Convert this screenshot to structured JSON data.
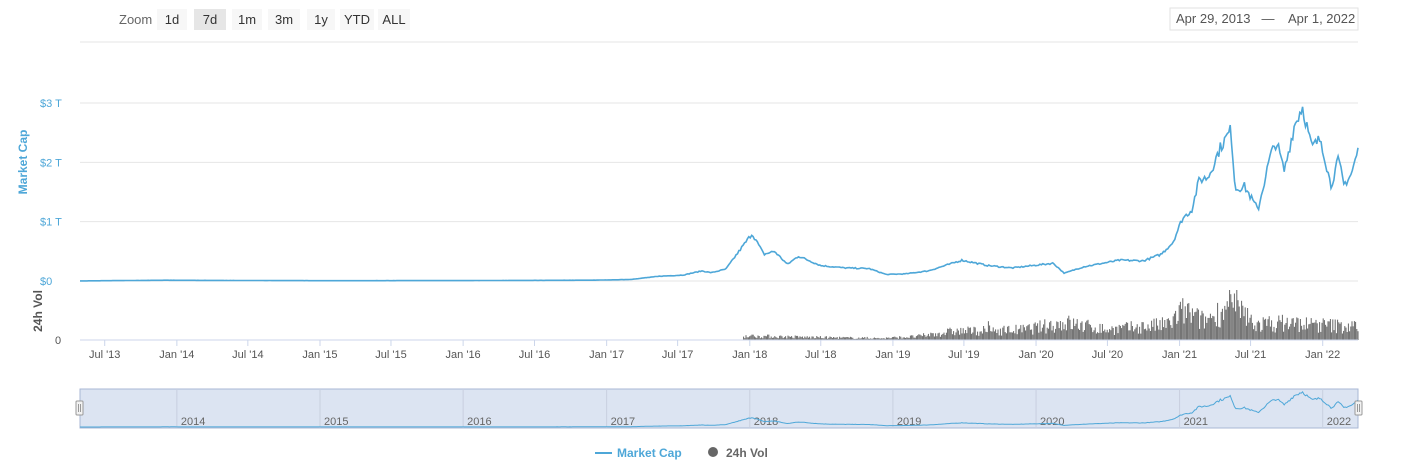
{
  "toolbar": {
    "zoom_label": "Zoom",
    "buttons": [
      {
        "label": "1d",
        "selected": false
      },
      {
        "label": "7d",
        "selected": true
      },
      {
        "label": "1m",
        "selected": false
      },
      {
        "label": "3m",
        "selected": false
      },
      {
        "label": "1y",
        "selected": false
      },
      {
        "label": "YTD",
        "selected": false
      },
      {
        "label": "ALL",
        "selected": false
      }
    ],
    "range_from": "Apr 29, 2013",
    "range_sep": "—",
    "range_to": "Apr 1, 2022"
  },
  "colors": {
    "market_cap": "#4ea7d8",
    "volume": "#666666",
    "navigator_fill": "#dce4f2",
    "navigator_border": "#a9b7d4",
    "grid": "#e6e6e6"
  },
  "chart_data": {
    "type": "line",
    "x_range": [
      "2013-04-29",
      "2022-04-01"
    ],
    "x_ticks": [
      "Jul '13",
      "Jan '14",
      "Jul '14",
      "Jan '15",
      "Jul '15",
      "Jan '16",
      "Jul '16",
      "Jan '17",
      "Jul '17",
      "Jan '18",
      "Jul '18",
      "Jan '19",
      "Jul '19",
      "Jan '20",
      "Jul '20",
      "Jan '21",
      "Jul '21",
      "Jan '22"
    ],
    "navigator_ticks": [
      "2014",
      "2015",
      "2016",
      "2017",
      "2018",
      "2019",
      "2020",
      "2021",
      "2022"
    ],
    "legend": [
      "Market Cap",
      "24h Vol"
    ],
    "legend_placement": "bottom-center",
    "series": [
      {
        "name": "Market Cap",
        "axis": "top",
        "ylabel": "Market Cap",
        "yticks": [
          "$0",
          "$1 T",
          "$2 T",
          "$3 T"
        ],
        "ylim_trillions": [
          0,
          3
        ],
        "points": [
          [
            "2013-04-29",
            0.0015
          ],
          [
            "2013-12-01",
            0.013
          ],
          [
            "2014-06-01",
            0.009
          ],
          [
            "2015-01-15",
            0.005
          ],
          [
            "2016-01-01",
            0.007
          ],
          [
            "2016-12-01",
            0.014
          ],
          [
            "2017-03-01",
            0.025
          ],
          [
            "2017-05-15",
            0.08
          ],
          [
            "2017-07-15",
            0.1
          ],
          [
            "2017-09-01",
            0.17
          ],
          [
            "2017-09-25",
            0.14
          ],
          [
            "2017-11-01",
            0.2
          ],
          [
            "2017-12-10",
            0.55
          ],
          [
            "2018-01-07",
            0.8
          ],
          [
            "2018-02-06",
            0.45
          ],
          [
            "2018-03-05",
            0.5
          ],
          [
            "2018-04-07",
            0.28
          ],
          [
            "2018-05-05",
            0.42
          ],
          [
            "2018-07-01",
            0.26
          ],
          [
            "2018-09-01",
            0.22
          ],
          [
            "2018-11-01",
            0.21
          ],
          [
            "2018-12-15",
            0.11
          ],
          [
            "2019-02-01",
            0.12
          ],
          [
            "2019-04-01",
            0.17
          ],
          [
            "2019-06-26",
            0.35
          ],
          [
            "2019-09-01",
            0.26
          ],
          [
            "2019-11-01",
            0.22
          ],
          [
            "2020-02-14",
            0.3
          ],
          [
            "2020-03-13",
            0.13
          ],
          [
            "2020-05-01",
            0.24
          ],
          [
            "2020-08-01",
            0.35
          ],
          [
            "2020-10-01",
            0.34
          ],
          [
            "2020-11-15",
            0.45
          ],
          [
            "2020-12-15",
            0.65
          ],
          [
            "2021-01-08",
            1.05
          ],
          [
            "2021-02-01",
            1.2
          ],
          [
            "2021-02-20",
            1.7
          ],
          [
            "2021-03-15",
            1.75
          ],
          [
            "2021-04-15",
            2.25
          ],
          [
            "2021-05-12",
            2.55
          ],
          [
            "2021-05-23",
            1.55
          ],
          [
            "2021-06-15",
            1.6
          ],
          [
            "2021-07-20",
            1.2
          ],
          [
            "2021-08-20",
            2.1
          ],
          [
            "2021-09-05",
            2.35
          ],
          [
            "2021-09-25",
            1.85
          ],
          [
            "2021-10-20",
            2.6
          ],
          [
            "2021-11-10",
            2.95
          ],
          [
            "2021-12-04",
            2.25
          ],
          [
            "2021-12-27",
            2.4
          ],
          [
            "2022-01-22",
            1.6
          ],
          [
            "2022-02-10",
            2.05
          ],
          [
            "2022-02-24",
            1.62
          ],
          [
            "2022-03-15",
            1.8
          ],
          [
            "2022-04-01",
            2.2
          ]
        ]
      },
      {
        "name": "24h Vol",
        "axis": "bottom",
        "ylabel": "24h Vol",
        "yticks": [
          "0"
        ],
        "start": "2017-12-15",
        "points": [
          [
            "2017-12-15",
            0.12
          ],
          [
            "2018-06-01",
            0.08
          ],
          [
            "2018-12-01",
            0.05
          ],
          [
            "2019-03-01",
            0.1
          ],
          [
            "2019-06-01",
            0.25
          ],
          [
            "2019-12-01",
            0.3
          ],
          [
            "2020-03-15",
            0.5
          ],
          [
            "2020-07-01",
            0.3
          ],
          [
            "2020-12-01",
            0.45
          ],
          [
            "2021-01-10",
            0.85
          ],
          [
            "2021-03-01",
            0.55
          ],
          [
            "2021-05-15",
            1.0
          ],
          [
            "2021-07-15",
            0.45
          ],
          [
            "2021-10-01",
            0.5
          ],
          [
            "2021-12-01",
            0.45
          ],
          [
            "2022-04-01",
            0.38
          ]
        ]
      }
    ]
  }
}
